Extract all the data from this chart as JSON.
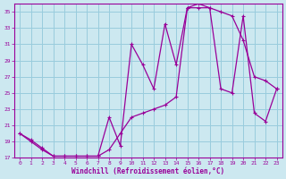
{
  "xlabel": "Windchill (Refroidissement éolien,°C)",
  "bg_color": "#cce8f0",
  "grid_color": "#99ccdd",
  "line_color": "#990099",
  "xlim": [
    -0.5,
    23.5
  ],
  "ylim": [
    17,
    36
  ],
  "xticks": [
    0,
    1,
    2,
    3,
    4,
    5,
    6,
    7,
    8,
    9,
    10,
    11,
    12,
    13,
    14,
    15,
    16,
    17,
    18,
    19,
    20,
    21,
    22,
    23
  ],
  "yticks": [
    17,
    19,
    21,
    23,
    25,
    27,
    29,
    31,
    33,
    35
  ],
  "curve1_x": [
    0,
    1,
    2,
    3,
    4,
    5,
    6,
    7,
    8,
    9,
    10,
    11,
    12,
    13,
    14,
    15,
    16,
    17,
    18,
    19,
    20,
    21,
    22,
    23
  ],
  "curve1_y": [
    20.0,
    19.0,
    18.0,
    17.2,
    17.2,
    17.2,
    17.2,
    17.2,
    22.0,
    18.5,
    31.0,
    28.5,
    25.5,
    33.5,
    28.5,
    35.5,
    36.0,
    35.5,
    35.0,
    34.5,
    31.5,
    27.0,
    26.5,
    25.5
  ],
  "curve2_x": [
    0,
    1,
    2,
    3,
    4,
    5,
    6,
    7,
    8,
    9,
    10,
    11,
    12,
    13,
    14,
    15,
    16,
    17,
    18,
    19,
    20,
    21,
    22,
    23
  ],
  "curve2_y": [
    20.0,
    19.2,
    18.2,
    17.2,
    17.2,
    17.2,
    17.2,
    17.2,
    18.0,
    20.0,
    22.0,
    22.5,
    23.0,
    23.5,
    24.5,
    35.5,
    35.5,
    35.5,
    25.5,
    25.0,
    34.5,
    22.5,
    21.5,
    25.5
  ]
}
